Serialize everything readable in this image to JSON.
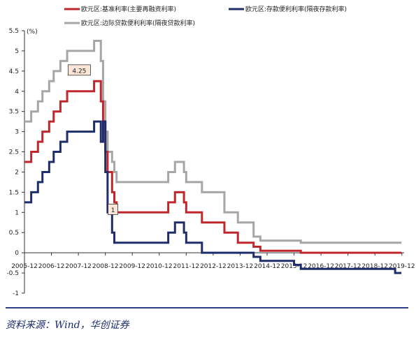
{
  "chart_data": {
    "type": "line",
    "ylabel": "(%)",
    "ylim": [
      -1,
      5.5
    ],
    "yticks": [
      -1,
      -0.5,
      0,
      0.5,
      1,
      1.5,
      2,
      2.5,
      3,
      3.5,
      4,
      4.5,
      5,
      5.5
    ],
    "xlim": [
      2005.9167,
      2020.0
    ],
    "xticks": [
      "2005-12",
      "2006-12",
      "2007-12",
      "2008-12",
      "2009-12",
      "2010-12",
      "2011-12",
      "2012-12",
      "2013-12",
      "2014-12",
      "2015-12",
      "2016-12",
      "2017-12",
      "2018-12",
      "2019-12"
    ],
    "grid": false,
    "legend_position": "top",
    "series": [
      {
        "name": "欧元区:基准利率(主要再融资利率)",
        "color": "#c0272d",
        "points": [
          [
            2005.9167,
            2.25
          ],
          [
            2006.1667,
            2.5
          ],
          [
            2006.4167,
            2.75
          ],
          [
            2006.5833,
            3.0
          ],
          [
            2006.8333,
            3.25
          ],
          [
            2007.0,
            3.5
          ],
          [
            2007.25,
            3.75
          ],
          [
            2007.5,
            4.0
          ],
          [
            2008.5,
            4.25
          ],
          [
            2008.75,
            3.75
          ],
          [
            2008.8333,
            3.25
          ],
          [
            2008.9167,
            2.5
          ],
          [
            2009.0,
            2.0
          ],
          [
            2009.1667,
            1.5
          ],
          [
            2009.25,
            1.25
          ],
          [
            2009.3333,
            1.0
          ],
          [
            2011.25,
            1.25
          ],
          [
            2011.5,
            1.5
          ],
          [
            2011.8333,
            1.25
          ],
          [
            2011.9167,
            1.0
          ],
          [
            2012.5,
            0.75
          ],
          [
            2013.3333,
            0.5
          ],
          [
            2013.8333,
            0.25
          ],
          [
            2014.4167,
            0.15
          ],
          [
            2014.6667,
            0.05
          ],
          [
            2016.1667,
            0.0
          ],
          [
            2019.9,
            0.0
          ]
        ]
      },
      {
        "name": "欧元区:存款便利利率(隔夜存款利率)",
        "color": "#1f2d6b",
        "points": [
          [
            2005.9167,
            1.25
          ],
          [
            2006.1667,
            1.5
          ],
          [
            2006.4167,
            1.75
          ],
          [
            2006.5833,
            2.0
          ],
          [
            2006.8333,
            2.25
          ],
          [
            2007.0,
            2.5
          ],
          [
            2007.25,
            2.75
          ],
          [
            2007.5,
            3.0
          ],
          [
            2008.5,
            3.25
          ],
          [
            2008.75,
            2.75
          ],
          [
            2008.8333,
            3.25
          ],
          [
            2008.9167,
            2.0
          ],
          [
            2009.0,
            1.0
          ],
          [
            2009.1667,
            0.5
          ],
          [
            2009.25,
            0.25
          ],
          [
            2011.25,
            0.5
          ],
          [
            2011.5,
            0.75
          ],
          [
            2011.8333,
            0.5
          ],
          [
            2011.9167,
            0.25
          ],
          [
            2012.5,
            0.0
          ],
          [
            2014.4167,
            -0.1
          ],
          [
            2014.6667,
            -0.2
          ],
          [
            2015.9167,
            -0.3
          ],
          [
            2016.1667,
            -0.4
          ],
          [
            2019.6667,
            -0.5
          ],
          [
            2019.9,
            -0.5
          ]
        ]
      },
      {
        "name": "欧元区:边际贷款便利利率(隔夜贷款利率)",
        "color": "#a6a6a6",
        "points": [
          [
            2005.9167,
            3.25
          ],
          [
            2006.1667,
            3.5
          ],
          [
            2006.4167,
            3.75
          ],
          [
            2006.5833,
            4.0
          ],
          [
            2006.8333,
            4.25
          ],
          [
            2007.0,
            4.5
          ],
          [
            2007.25,
            4.75
          ],
          [
            2007.5,
            5.0
          ],
          [
            2008.5,
            5.25
          ],
          [
            2008.75,
            4.75
          ],
          [
            2008.8333,
            3.75
          ],
          [
            2008.9167,
            3.0
          ],
          [
            2009.0,
            2.5
          ],
          [
            2009.1667,
            2.25
          ],
          [
            2009.25,
            2.0
          ],
          [
            2009.3333,
            1.75
          ],
          [
            2011.25,
            2.0
          ],
          [
            2011.5,
            2.25
          ],
          [
            2011.8333,
            2.0
          ],
          [
            2011.9167,
            1.75
          ],
          [
            2012.5,
            1.5
          ],
          [
            2013.3333,
            1.0
          ],
          [
            2013.8333,
            0.75
          ],
          [
            2014.4167,
            0.4
          ],
          [
            2014.6667,
            0.3
          ],
          [
            2016.1667,
            0.25
          ],
          [
            2019.9,
            0.25
          ]
        ]
      }
    ],
    "annotations": [
      {
        "text": "4.25",
        "x": 2007.95,
        "y": 4.25
      },
      {
        "text": "1",
        "x": 2009.2,
        "y": 0.8
      }
    ]
  },
  "source": "资料来源：Wind，华创证券"
}
